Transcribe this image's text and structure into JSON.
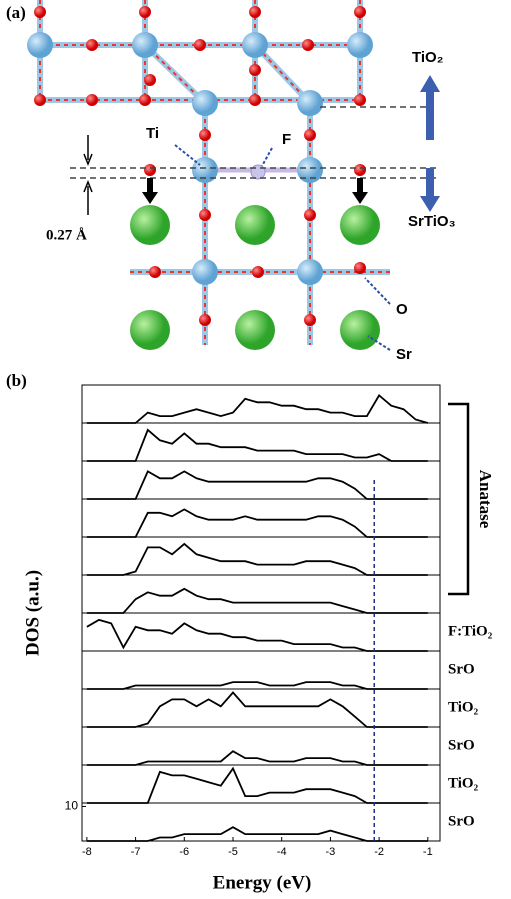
{
  "diagram": {
    "panel_label": "(a)",
    "top_layer": "TiO₂",
    "substrate": "SrTiO₃",
    "ti_label": "Ti",
    "f_label": "F",
    "o_label": "O",
    "sr_label": "Sr",
    "shift": "0.27 Å"
  },
  "chart_data": {
    "type": "line",
    "panel_label": "(b)",
    "xlabel": "Energy  (eV)",
    "ylabel": "DOS (a.u.)",
    "group_label": "Anatase",
    "x": [
      -8,
      -7.75,
      -7.5,
      -7.25,
      -7,
      -6.75,
      -6.5,
      -6.25,
      -6,
      -5.75,
      -5.5,
      -5.25,
      -5,
      -4.75,
      -4.5,
      -4.25,
      -4,
      -3.75,
      -3.5,
      -3.25,
      -3,
      -2.75,
      -2.5,
      -2.25,
      -2,
      -1.75,
      -1.5,
      -1.25,
      -1
    ],
    "xlim": [
      -8.1,
      -0.75
    ],
    "xticks": [
      -8,
      -7,
      -6,
      -5,
      -4,
      -3,
      -2,
      -1
    ],
    "ylim": [
      0,
      11
    ],
    "yticks": [
      10
    ],
    "vline": -2.1,
    "vline_color": "#1f2f8a",
    "color": "#000000",
    "series": [
      {
        "values": [
          0,
          0,
          0,
          0,
          0,
          3,
          2,
          2,
          3,
          4,
          3,
          2,
          3,
          7,
          6,
          6,
          5,
          5,
          4,
          4,
          3,
          3,
          2,
          2,
          8,
          5,
          4,
          1,
          0
        ]
      },
      {
        "values": [
          0,
          0,
          0,
          0,
          0,
          9,
          6,
          5,
          8,
          5,
          5,
          4,
          4,
          4,
          3,
          3,
          3,
          3,
          2,
          2,
          2,
          2,
          1,
          1,
          2,
          0,
          0,
          0,
          0
        ]
      },
      {
        "values": [
          0,
          0,
          0,
          0,
          0,
          8,
          6,
          6,
          8,
          6,
          5,
          5,
          5,
          5,
          5,
          5,
          5,
          5,
          5,
          6,
          6,
          5,
          3,
          0,
          0,
          0,
          0,
          0,
          0
        ]
      },
      {
        "values": [
          0,
          0,
          0,
          0,
          0,
          7,
          7,
          6,
          8,
          6,
          5,
          5,
          5,
          6,
          5,
          5,
          5,
          5,
          5,
          6,
          6,
          5,
          3,
          0,
          0,
          0,
          0,
          0,
          0
        ]
      },
      {
        "values": [
          0,
          0,
          0,
          0,
          1,
          8,
          8,
          6,
          9,
          6,
          5,
          4,
          4,
          4,
          3,
          3,
          3,
          3,
          4,
          4,
          4,
          3,
          2,
          0,
          0,
          0,
          0,
          0,
          0
        ]
      },
      {
        "values": [
          0,
          0,
          0,
          0,
          4,
          6,
          5,
          5,
          7,
          5,
          4,
          4,
          3,
          3,
          3,
          3,
          3,
          3,
          3,
          3,
          3,
          2,
          1,
          0,
          0,
          0,
          0,
          0,
          0
        ]
      },
      {
        "name": "F:TiO₂",
        "values": [
          7,
          9,
          8,
          1,
          7,
          6,
          6,
          5,
          8,
          6,
          5,
          5,
          4,
          4,
          3,
          3,
          3,
          2,
          2,
          2,
          2,
          1,
          1,
          0,
          0,
          0,
          0,
          0,
          0
        ]
      },
      {
        "name": "SrO",
        "values": [
          0,
          0,
          0,
          0,
          1,
          1,
          1,
          1,
          1,
          1,
          1,
          1,
          2,
          2,
          2,
          1,
          1,
          1,
          2,
          2,
          2,
          1,
          1,
          0,
          0,
          0,
          0,
          0,
          0
        ]
      },
      {
        "name": "TiO₂",
        "values": [
          0,
          0,
          0,
          0,
          0,
          1,
          6,
          8,
          8,
          6,
          8,
          6,
          10,
          6,
          6,
          6,
          6,
          6,
          6,
          6,
          8,
          6,
          3,
          0,
          0,
          0,
          0,
          0,
          0
        ]
      },
      {
        "name": "SrO",
        "values": [
          0,
          0,
          0,
          0,
          0,
          1,
          1,
          1,
          1,
          1,
          1,
          1,
          4,
          2,
          2,
          1,
          1,
          1,
          2,
          2,
          2,
          1,
          1,
          0,
          0,
          0,
          0,
          0,
          0
        ]
      },
      {
        "name": "TiO₂",
        "values": [
          0,
          0,
          0,
          0,
          0,
          0,
          9,
          8,
          8,
          7,
          6,
          5,
          10,
          2,
          2,
          3,
          3,
          3,
          4,
          4,
          4,
          3,
          2,
          0,
          0,
          0,
          0,
          0,
          0
        ]
      },
      {
        "name": "SrO",
        "values": [
          0,
          0,
          0,
          0,
          0,
          0,
          1,
          1,
          2,
          2,
          2,
          2,
          4,
          2,
          2,
          2,
          2,
          2,
          2,
          2,
          3,
          2,
          1,
          0,
          0,
          0,
          0,
          0,
          0
        ]
      }
    ]
  }
}
